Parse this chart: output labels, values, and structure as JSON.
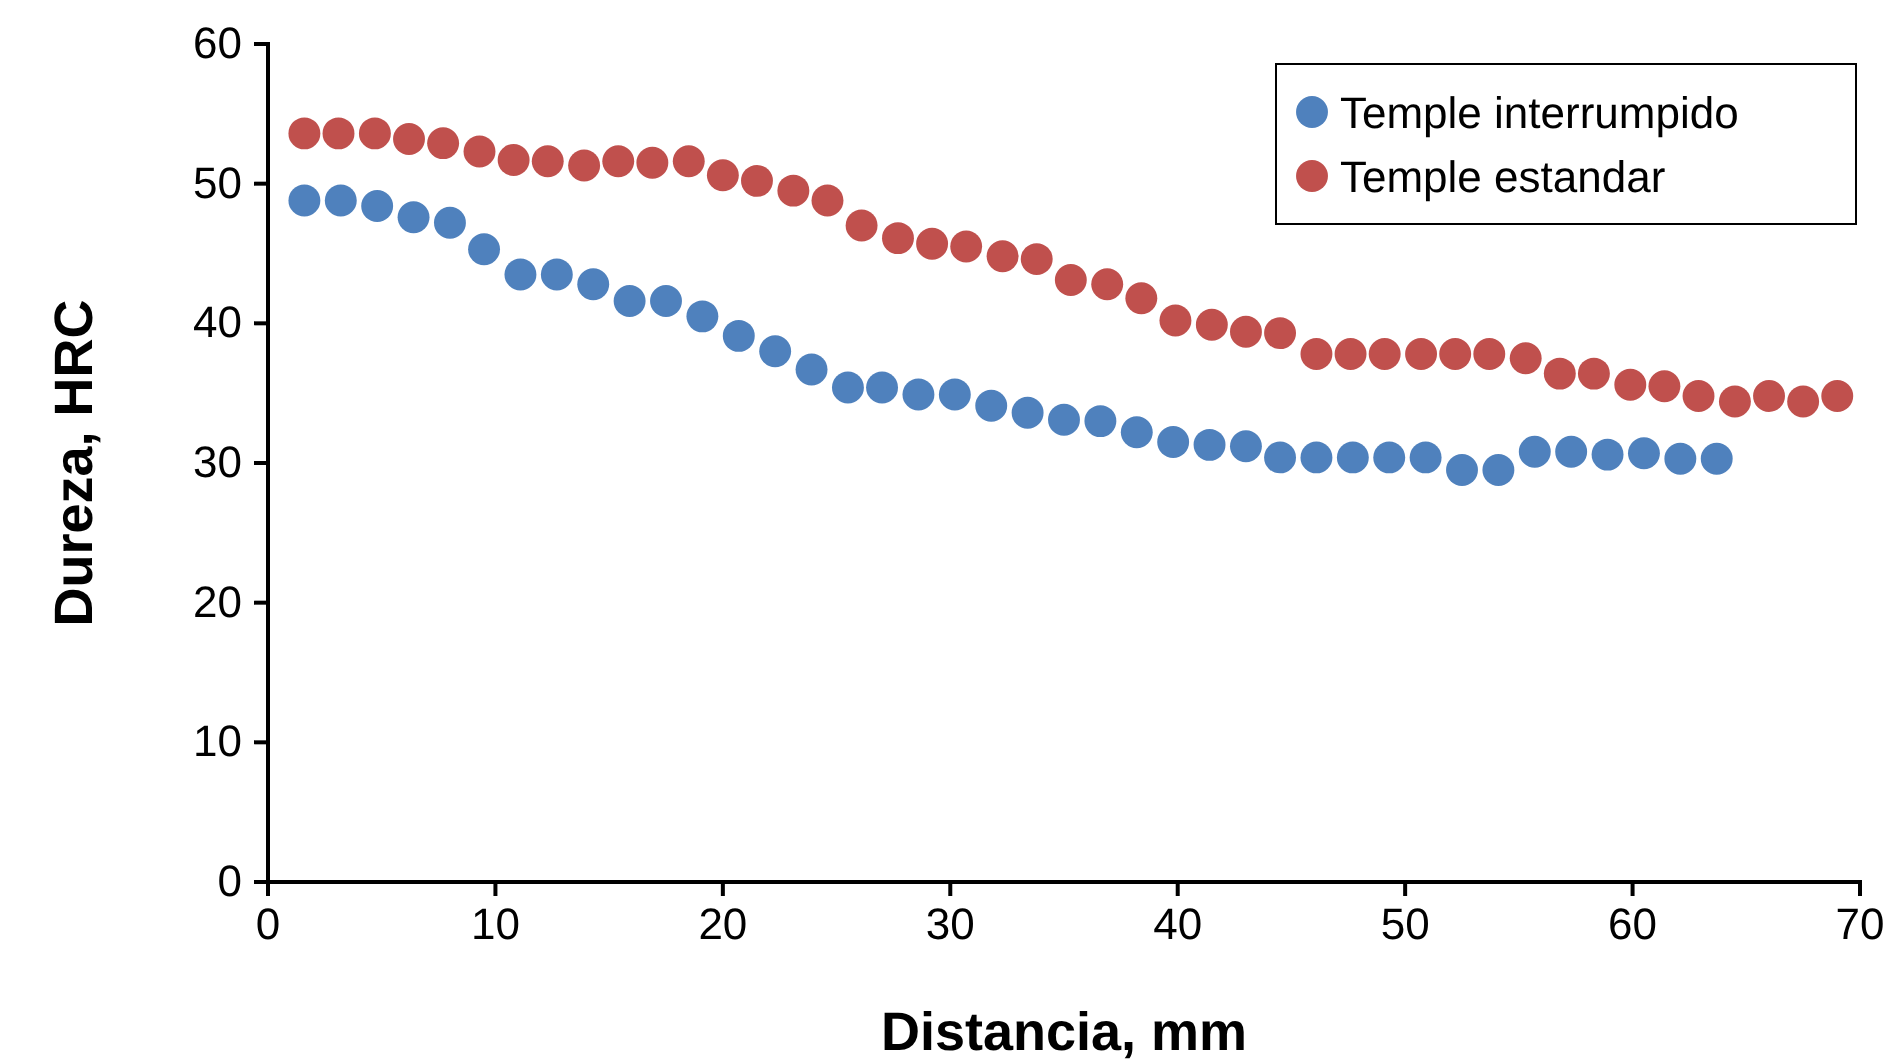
{
  "chart_data": {
    "type": "scatter",
    "xlabel": "Distancia, mm",
    "ylabel": "Dureza, HRC",
    "xlim": [
      0,
      70
    ],
    "xticks": [
      0,
      10,
      20,
      30,
      40,
      50,
      60,
      70
    ],
    "ylim": [
      0,
      60
    ],
    "yticks": [
      0,
      10,
      20,
      30,
      40,
      50,
      60
    ],
    "grid": false,
    "legend": "top right",
    "marker": "circle",
    "series": [
      {
        "name": "Temple interrumpido",
        "color": "#4f81bd",
        "x": [
          1.6,
          3.2,
          4.8,
          6.4,
          8.0,
          9.5,
          11.1,
          12.7,
          14.3,
          15.9,
          17.5,
          19.1,
          20.7,
          22.3,
          23.9,
          25.5,
          27.0,
          28.6,
          30.2,
          31.8,
          33.4,
          35.0,
          36.6,
          38.2,
          39.8,
          41.4,
          43.0,
          44.5,
          46.1,
          47.7,
          49.3,
          50.9,
          52.5,
          54.1,
          55.7,
          57.3,
          58.9,
          60.5,
          62.1,
          63.7
        ],
        "values": [
          48.8,
          48.8,
          48.4,
          47.6,
          47.2,
          45.3,
          43.5,
          43.5,
          42.8,
          41.6,
          41.6,
          40.5,
          39.1,
          38.0,
          36.7,
          35.4,
          35.4,
          34.9,
          34.9,
          34.1,
          33.6,
          33.1,
          33.0,
          32.2,
          31.5,
          31.3,
          31.2,
          30.4,
          30.4,
          30.4,
          30.4,
          30.4,
          29.5,
          29.5,
          30.8,
          30.8,
          30.6,
          30.7,
          30.3,
          30.3
        ]
      },
      {
        "name": "Temple estandar",
        "color": "#c0504d",
        "x": [
          1.6,
          3.1,
          4.7,
          6.2,
          7.7,
          9.3,
          10.8,
          12.3,
          13.9,
          15.4,
          16.9,
          18.5,
          20.0,
          21.5,
          23.1,
          24.6,
          26.1,
          27.7,
          29.2,
          30.7,
          32.3,
          33.8,
          35.3,
          36.9,
          38.4,
          39.9,
          41.5,
          43.0,
          44.5,
          46.1,
          47.6,
          49.1,
          50.7,
          52.2,
          53.7,
          55.3,
          56.8,
          58.3,
          59.9,
          61.4,
          62.9,
          64.5,
          66.0,
          67.5,
          69.0
        ],
        "values": [
          53.6,
          53.6,
          53.6,
          53.2,
          52.9,
          52.3,
          51.7,
          51.6,
          51.3,
          51.6,
          51.5,
          51.6,
          50.6,
          50.2,
          49.5,
          48.8,
          47.0,
          46.1,
          45.7,
          45.5,
          44.8,
          44.6,
          43.1,
          42.8,
          41.8,
          40.2,
          39.9,
          39.4,
          39.3,
          37.8,
          37.8,
          37.8,
          37.8,
          37.8,
          37.8,
          37.5,
          36.4,
          36.4,
          35.6,
          35.5,
          34.8,
          34.4,
          34.8,
          34.4,
          34.8
        ]
      }
    ]
  }
}
